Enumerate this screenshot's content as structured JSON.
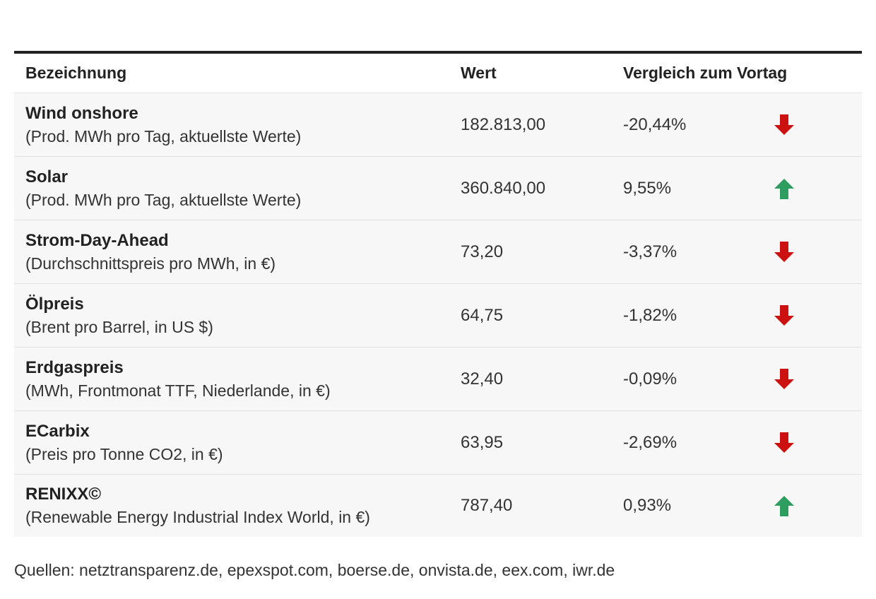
{
  "headers": {
    "name": "Bezeichnung",
    "value": "Wert",
    "change": "Vergleich zum Vortag"
  },
  "rows": [
    {
      "name": "Wind onshore",
      "sub": "(Prod. MWh pro Tag, aktuellste Werte)",
      "value": "182.813,00",
      "change": "-20,44%",
      "trend": "down"
    },
    {
      "name": "Solar",
      "sub": "(Prod. MWh pro Tag, aktuellste Werte)",
      "value": "360.840,00",
      "change": "9,55%",
      "trend": "up"
    },
    {
      "name": "Strom-Day-Ahead",
      "sub": "(Durchschnittspreis pro MWh, in €)",
      "value": "73,20",
      "change": "-3,37%",
      "trend": "down"
    },
    {
      "name": "Ölpreis",
      "sub": "(Brent pro Barrel, in US $)",
      "value": "64,75",
      "change": "-1,82%",
      "trend": "down"
    },
    {
      "name": "Erdgaspreis",
      "sub": "(MWh, Frontmonat TTF, Niederlande, in €)",
      "value": "32,40",
      "change": "-0,09%",
      "trend": "down"
    },
    {
      "name": "ECarbix",
      "sub": "(Preis pro Tonne CO2, in €)",
      "value": "63,95",
      "change": "-2,69%",
      "trend": "down"
    },
    {
      "name": "RENIXX©",
      "sub": "(Renewable Energy Industrial Index World, in €)",
      "value": "787,40",
      "change": "0,93%",
      "trend": "up"
    }
  ],
  "colors": {
    "down": "#cc1111",
    "up": "#2e9e60"
  },
  "source": "Quellen: netztransparenz.de, epexspot.com, boerse.de, onvista.de, eex.com, iwr.de"
}
